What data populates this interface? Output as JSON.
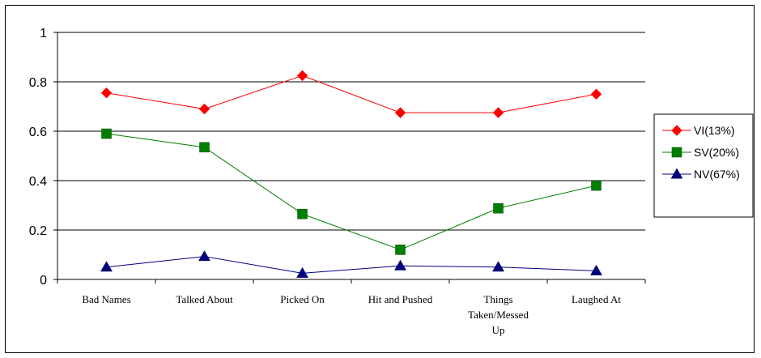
{
  "chart_data": {
    "type": "line",
    "categories": [
      [
        "Bad Names"
      ],
      [
        "Talked About"
      ],
      [
        "Picked On"
      ],
      [
        "Hit and Pushed"
      ],
      [
        "Things",
        "Taken/Messed",
        "Up"
      ],
      [
        "Laughed At"
      ]
    ],
    "series": [
      {
        "name": "VI(13%)",
        "color": "#ff0000",
        "marker": "diamond",
        "values": [
          0.755,
          0.69,
          0.825,
          0.675,
          0.675,
          0.75
        ]
      },
      {
        "name": "SV(20%)",
        "color": "#008000",
        "marker": "square",
        "values": [
          0.59,
          0.535,
          0.265,
          0.12,
          0.288,
          0.38
        ]
      },
      {
        "name": "NV(67%)",
        "color": "#000080",
        "marker": "triangle",
        "values": [
          0.05,
          0.093,
          0.025,
          0.055,
          0.05,
          0.035
        ]
      }
    ],
    "yticks": [
      "0",
      "0.2",
      "0.4",
      "0.6",
      "0.8",
      "1"
    ],
    "ylim": [
      0,
      1
    ],
    "grid": true,
    "legend": "right"
  }
}
